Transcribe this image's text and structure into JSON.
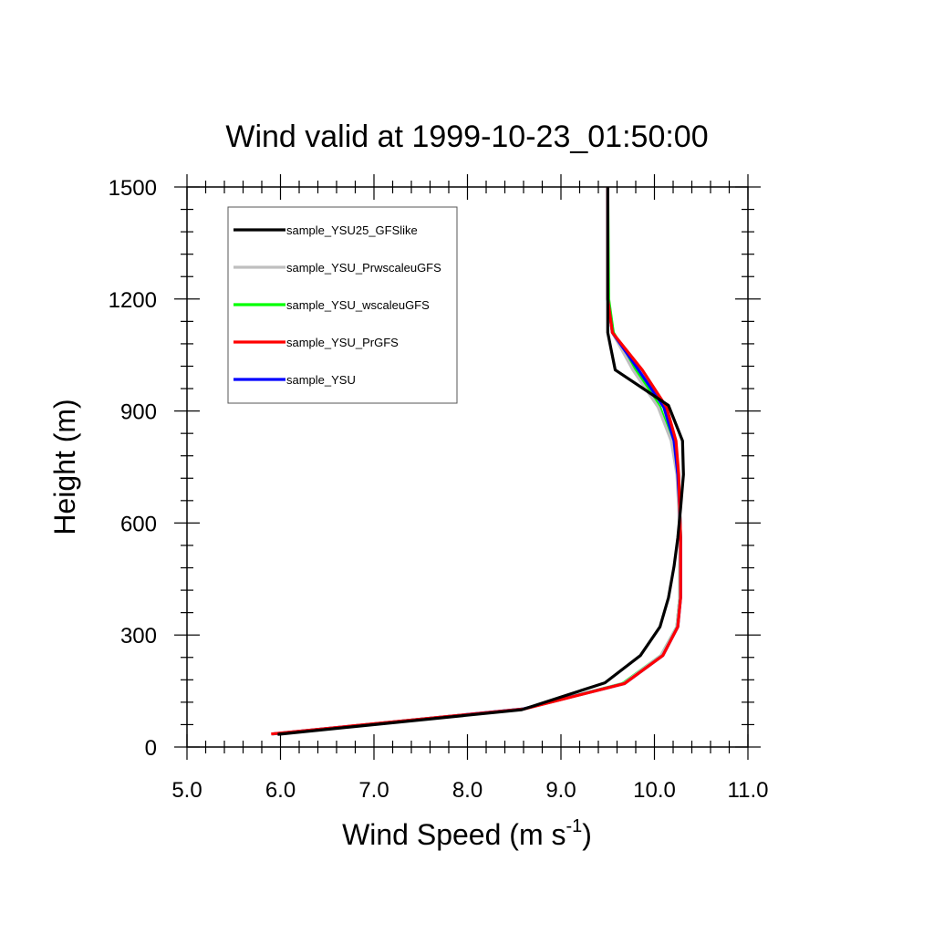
{
  "chart_data": {
    "type": "line",
    "title": "Wind valid at 1999-10-23_01:50:00",
    "xlabel": "Wind Speed (m s",
    "xlabel_superscript": "-1",
    "xlabel_suffix": ")",
    "ylabel": "Height (m)",
    "xlim": [
      5.0,
      11.0
    ],
    "ylim": [
      0,
      1500
    ],
    "xticks": [
      5.0,
      6.0,
      7.0,
      8.0,
      9.0,
      10.0,
      11.0
    ],
    "xtick_labels": [
      "5.0",
      "6.0",
      "7.0",
      "8.0",
      "9.0",
      "10.0",
      "11.0"
    ],
    "yticks": [
      0,
      300,
      600,
      900,
      1200,
      1500
    ],
    "ytick_labels": [
      "0",
      "300",
      "600",
      "900",
      "1200",
      "1500"
    ],
    "grid": false,
    "legend_position": "top-left",
    "series": [
      {
        "name": "sample_YSU25_GFSlike",
        "color": "#000000",
        "points": [
          [
            5.97,
            34
          ],
          [
            8.58,
            100
          ],
          [
            9.47,
            172
          ],
          [
            9.85,
            245
          ],
          [
            10.06,
            322
          ],
          [
            10.15,
            400
          ],
          [
            10.21,
            484
          ],
          [
            10.25,
            560
          ],
          [
            10.28,
            640
          ],
          [
            10.31,
            730
          ],
          [
            10.3,
            820
          ],
          [
            10.15,
            915
          ],
          [
            9.58,
            1010
          ],
          [
            9.5,
            1110
          ],
          [
            9.5,
            1200
          ],
          [
            9.5,
            1500
          ]
        ]
      },
      {
        "name": "sample_YSU_PrwscaleuGFS",
        "color": "#bfbfbf",
        "points": [
          [
            5.91,
            35
          ],
          [
            8.6,
            102
          ],
          [
            9.67,
            170
          ],
          [
            10.07,
            245
          ],
          [
            10.24,
            322
          ],
          [
            10.27,
            400
          ],
          [
            10.27,
            480
          ],
          [
            10.27,
            560
          ],
          [
            10.26,
            640
          ],
          [
            10.24,
            730
          ],
          [
            10.18,
            820
          ],
          [
            10.04,
            910
          ],
          [
            9.77,
            1010
          ],
          [
            9.55,
            1110
          ],
          [
            9.5,
            1200
          ],
          [
            9.5,
            1500
          ]
        ]
      },
      {
        "name": "sample_YSU_wscaleuGFS",
        "color": "#00ff00",
        "points": [
          [
            5.92,
            35
          ],
          [
            8.6,
            102
          ],
          [
            9.66,
            170
          ],
          [
            10.07,
            245
          ],
          [
            10.24,
            322
          ],
          [
            10.27,
            400
          ],
          [
            10.27,
            480
          ],
          [
            10.28,
            560
          ],
          [
            10.27,
            640
          ],
          [
            10.25,
            730
          ],
          [
            10.19,
            820
          ],
          [
            10.06,
            910
          ],
          [
            9.8,
            1010
          ],
          [
            9.56,
            1110
          ],
          [
            9.51,
            1200
          ],
          [
            9.5,
            1500
          ]
        ]
      },
      {
        "name": "sample_YSU_PrGFS",
        "color": "#ff0000",
        "points": [
          [
            5.9,
            35
          ],
          [
            8.61,
            102
          ],
          [
            9.68,
            170
          ],
          [
            10.09,
            245
          ],
          [
            10.25,
            322
          ],
          [
            10.28,
            400
          ],
          [
            10.28,
            480
          ],
          [
            10.28,
            560
          ],
          [
            10.27,
            640
          ],
          [
            10.26,
            730
          ],
          [
            10.23,
            820
          ],
          [
            10.13,
            910
          ],
          [
            9.87,
            1010
          ],
          [
            9.55,
            1110
          ],
          [
            9.5,
            1200
          ],
          [
            9.5,
            1500
          ]
        ]
      },
      {
        "name": "sample_YSU",
        "color": "#0000ff",
        "points": [
          [
            5.91,
            35
          ],
          [
            8.6,
            102
          ],
          [
            9.68,
            170
          ],
          [
            10.09,
            245
          ],
          [
            10.25,
            322
          ],
          [
            10.28,
            400
          ],
          [
            10.28,
            480
          ],
          [
            10.28,
            560
          ],
          [
            10.27,
            640
          ],
          [
            10.25,
            730
          ],
          [
            10.21,
            820
          ],
          [
            10.1,
            910
          ],
          [
            9.83,
            1010
          ],
          [
            9.55,
            1110
          ],
          [
            9.5,
            1200
          ],
          [
            9.5,
            1500
          ]
        ]
      }
    ],
    "draw_order": [
      2,
      1,
      4,
      3,
      0
    ]
  }
}
